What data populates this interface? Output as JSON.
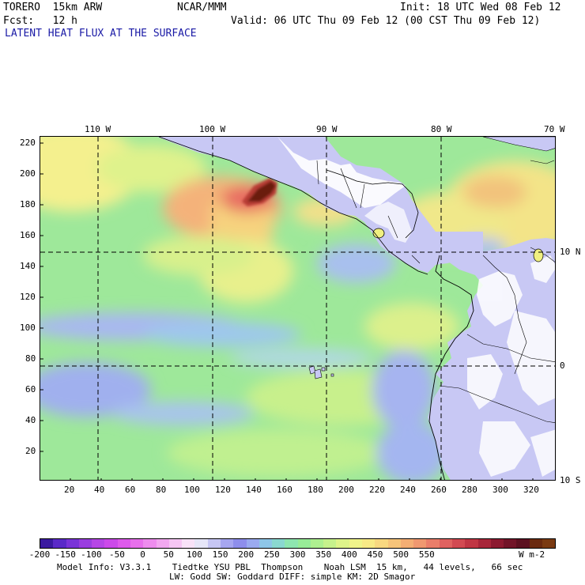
{
  "header": {
    "model": "TORERO  15km ARW",
    "org": "NCAR/MMM",
    "init": "Init: 18 UTC Wed 08 Feb 12",
    "fcst": "Fcst:   12 h",
    "valid": "Valid: 06 UTC Thu 09 Feb 12 (00 CST Thu 09 Feb 12)",
    "field_title": "LATENT HEAT FLUX AT THE SURFACE"
  },
  "map": {
    "top_lon_labels": [
      "110 W",
      "100 W",
      "90 W",
      "80 W",
      "70 W"
    ],
    "right_lat_labels": [
      "10 N",
      "0",
      "10 S"
    ],
    "left_y_ticks": [
      "220",
      "200",
      "180",
      "160",
      "140",
      "120",
      "100",
      "80",
      "60",
      "40",
      "20"
    ],
    "bottom_x_ticks": [
      "20",
      "40",
      "60",
      "80",
      "100",
      "120",
      "140",
      "160",
      "180",
      "200",
      "220",
      "240",
      "260",
      "280",
      "300",
      "320"
    ],
    "colors": {
      "ocean_green": "#9ee89a",
      "land_lavender": "#c8c8f4",
      "land_white": "#ffffff",
      "yellow": "#f6f08a",
      "orange": "#f2b276",
      "red": "#d84a4a",
      "dark_brown": "#6a1e10"
    }
  },
  "colorbar": {
    "labels": [
      "-200",
      "-150",
      "-100",
      "-50",
      "0",
      "50",
      "100",
      "150",
      "200",
      "250",
      "300",
      "350",
      "400",
      "450",
      "500",
      "550"
    ],
    "units": "W m-2",
    "colors": [
      "#3a1aa0",
      "#5a2ac8",
      "#7a34d8",
      "#9a3ee0",
      "#b646e6",
      "#cc4aea",
      "#de5aec",
      "#e870ec",
      "#ee8cee",
      "#f2a8f0",
      "#f6c6f4",
      "#f8e2f8",
      "#e6e6f8",
      "#c6c6f4",
      "#a6a6f0",
      "#8e8eec",
      "#9aaaf0",
      "#8ec6e8",
      "#8ad8d0",
      "#8ee6b0",
      "#98ec98",
      "#aef090",
      "#c6f28c",
      "#def48a",
      "#f0f48a",
      "#f8ea86",
      "#f8d880",
      "#f6c47a",
      "#f4ae74",
      "#f09870",
      "#ea7e6a",
      "#e06260",
      "#d24a52",
      "#c03644",
      "#a8263a",
      "#8c1a30",
      "#721428",
      "#5c1020",
      "#6a2a10",
      "#7a3a12"
    ]
  },
  "footer": {
    "line1": "Model Info: V3.3.1    Tiedtke YSU PBL  Thompson    Noah LSM  15 km,   44 levels,   66 sec",
    "line2": "LW: Godd SW: Goddard DIFF: simple KM: 2D Smagor"
  }
}
